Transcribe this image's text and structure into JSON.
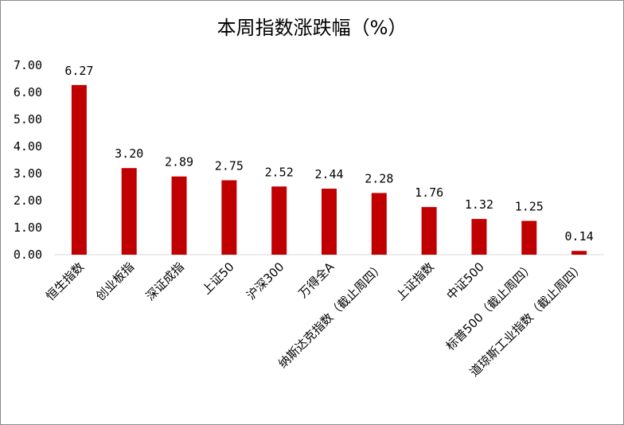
{
  "chart_data": {
    "type": "bar",
    "title": "本周指数涨跌幅（%）",
    "xlabel": "",
    "ylabel": "",
    "ylim": [
      0,
      7
    ],
    "yticks": [
      "0.00",
      "1.00",
      "2.00",
      "3.00",
      "4.00",
      "5.00",
      "6.00",
      "7.00"
    ],
    "grid": false,
    "categories": [
      "恒生指数",
      "创业板指",
      "深证成指",
      "上证50",
      "沪深300",
      "万得全A",
      "纳斯达克指数（截止周四）",
      "上证指数",
      "中证500",
      "标普500（截止周四）",
      "道琼斯工业指数（截止周四）"
    ],
    "values": [
      6.27,
      3.2,
      2.89,
      2.75,
      2.52,
      2.44,
      2.28,
      1.76,
      1.32,
      1.25,
      0.14
    ],
    "value_labels": [
      "6.27",
      "3.20",
      "2.89",
      "2.75",
      "2.52",
      "2.44",
      "2.28",
      "1.76",
      "1.32",
      "1.25",
      "0.14"
    ],
    "bar_color": "#c00000"
  }
}
